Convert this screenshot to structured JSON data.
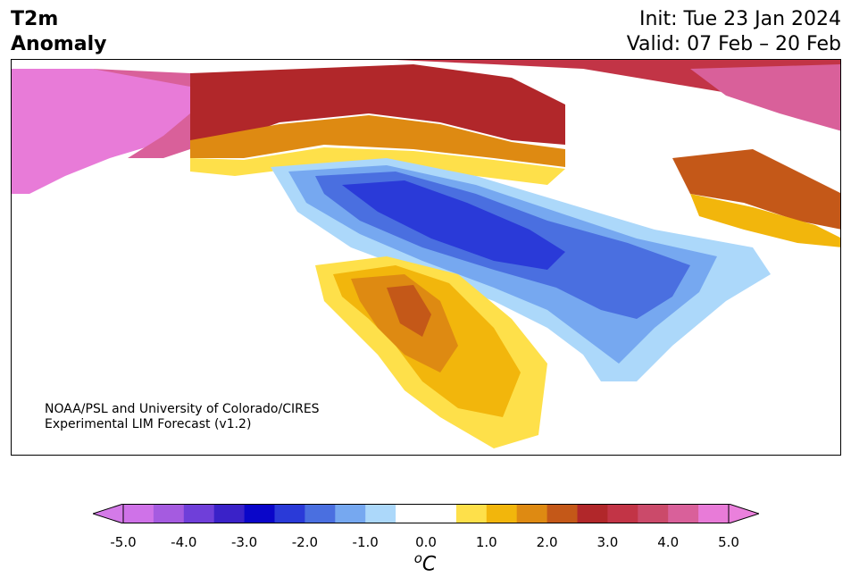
{
  "title": {
    "left_line1": "T2m",
    "left_line2": "Anomaly",
    "init": "Init: Tue 23 Jan 2024",
    "valid": "Valid: 07 Feb – 20 Feb"
  },
  "credit": {
    "line1": "NOAA/PSL and University of Colorado/CIRES",
    "line2": "Experimental LIM Forecast (v1.2)"
  },
  "colorbar": {
    "min": -5.0,
    "max": 5.0,
    "step": 0.5,
    "extend": "both",
    "units_base": "C",
    "units_sup": "o",
    "tick_labels": [
      "-5.0",
      "-4.0",
      "-3.0",
      "-2.0",
      "-1.0",
      "0.0",
      "1.0",
      "2.0",
      "3.0",
      "4.0",
      "5.0"
    ],
    "colors": [
      "#cf72e8",
      "#a55be0",
      "#6f3fd9",
      "#3a22c8",
      "#0a06c9",
      "#2a3ad8",
      "#4a6fe0",
      "#76a8f0",
      "#acd8fa",
      "#ffffff",
      "#ffffff",
      "#fee04a",
      "#f2b60c",
      "#de8a12",
      "#c45818",
      "#b1272a",
      "#c23446",
      "#cb4a6a",
      "#d9609a",
      "#e87bd8"
    ],
    "below_color": "#d47ae8",
    "above_color": "#ea80dc"
  },
  "map_legend": {
    "strong_cold": "#2a3ad8",
    "cold": "#4a6fe0",
    "cool": "#76a8f0",
    "slight_cool": "#acd8fa",
    "slight_warm": "#fee04a",
    "warm": "#f2b60c",
    "warmer": "#de8a12",
    "hot": "#c45818",
    "very_hot": "#b1272a",
    "extreme": "#c23446",
    "extreme2": "#d9609a",
    "extreme3": "#e87bd8"
  }
}
